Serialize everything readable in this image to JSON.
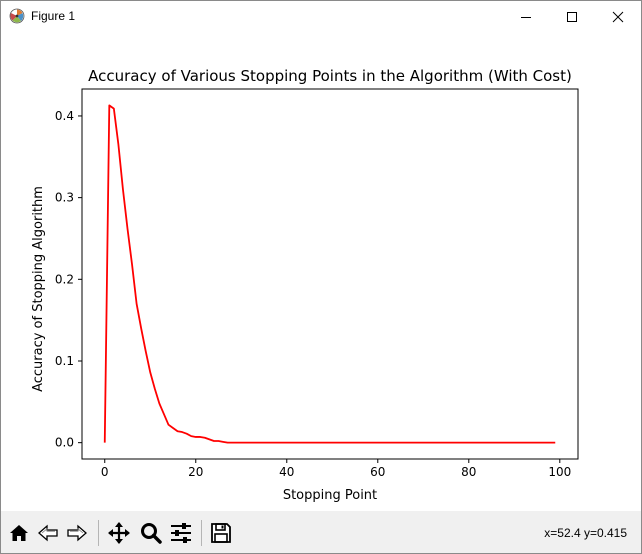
{
  "window": {
    "title": "Figure 1",
    "controls": {
      "minimize": "minimize-icon",
      "maximize": "maximize-icon",
      "close": "close-icon"
    }
  },
  "chart_data": {
    "type": "line",
    "title": "Accuracy of Various Stopping Points in the Algorithm (With Cost)",
    "xlabel": "Stopping Point",
    "ylabel": "Accuracy of Stopping Algorithm",
    "xlim": [
      -5,
      104
    ],
    "ylim": [
      -0.02,
      0.433
    ],
    "xticks": [
      0,
      20,
      40,
      60,
      80,
      100
    ],
    "xtick_labels": [
      "0",
      "20",
      "40",
      "60",
      "80",
      "100"
    ],
    "yticks": [
      0.0,
      0.1,
      0.2,
      0.3,
      0.4
    ],
    "ytick_labels": [
      "0.0",
      "0.1",
      "0.2",
      "0.3",
      "0.4"
    ],
    "grid": false,
    "series": [
      {
        "color": "#ff0000",
        "x": [
          0,
          1,
          2,
          3,
          4,
          5,
          6,
          7,
          8,
          9,
          10,
          11,
          12,
          13,
          14,
          15,
          16,
          17,
          18,
          19,
          20,
          21,
          22,
          23,
          24,
          25,
          26,
          27,
          28,
          29,
          30,
          40,
          50,
          60,
          70,
          80,
          90,
          99
        ],
        "y": [
          0.0,
          0.413,
          0.409,
          0.365,
          0.31,
          0.262,
          0.218,
          0.17,
          0.14,
          0.112,
          0.086,
          0.066,
          0.048,
          0.035,
          0.022,
          0.018,
          0.014,
          0.013,
          0.011,
          0.008,
          0.007,
          0.007,
          0.006,
          0.004,
          0.002,
          0.002,
          0.001,
          0.0,
          0.0,
          0.0,
          0.0,
          0.0,
          0.0,
          0.0,
          0.0,
          0.0,
          0.0,
          0.0
        ]
      }
    ]
  },
  "toolbar": {
    "buttons": [
      {
        "name": "home-icon"
      },
      {
        "name": "back-icon"
      },
      {
        "name": "forward-icon"
      },
      {
        "name": "pan-icon"
      },
      {
        "name": "zoom-icon"
      },
      {
        "name": "configure-subplots-icon"
      },
      {
        "name": "save-icon"
      }
    ],
    "coords": "x=52.4 y=0.415"
  }
}
